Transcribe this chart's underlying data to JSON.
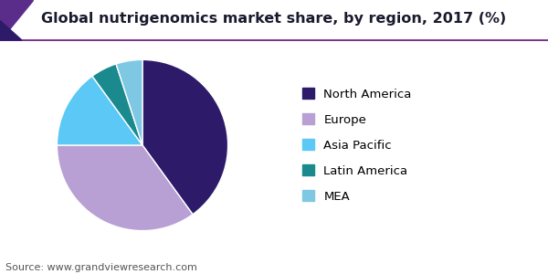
{
  "title": "Global nutrigenomics market share, by region, 2017 (%)",
  "source": "Source: www.grandviewresearch.com",
  "labels": [
    "North America",
    "Europe",
    "Asia Pacific",
    "Latin America",
    "MEA"
  ],
  "values": [
    40,
    35,
    15,
    5,
    5
  ],
  "colors": [
    "#2d1b69",
    "#b8a0d4",
    "#5bc8f5",
    "#1a8a8e",
    "#7ec8e3"
  ],
  "legend_labels": [
    "North America",
    "Europe",
    "Asia Pacific",
    "Latin America",
    "MEA"
  ],
  "startangle": 90,
  "title_fontsize": 11.5,
  "source_fontsize": 8,
  "legend_fontsize": 9.5,
  "header_line_color": "#7b2d8b",
  "triangle_color1": "#5b2d8b",
  "triangle_color2": "#2d1b69"
}
